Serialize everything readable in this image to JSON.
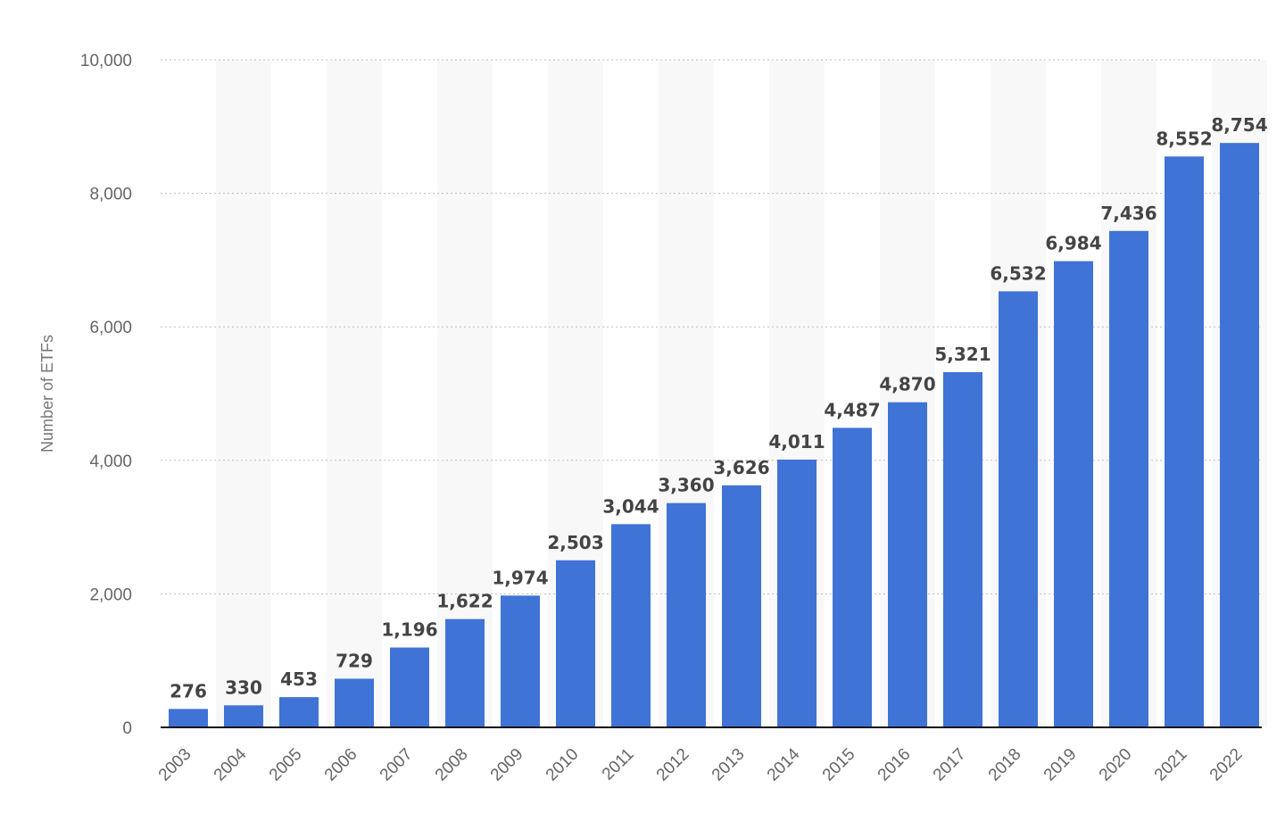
{
  "chart_data": {
    "type": "bar",
    "categories": [
      "2003",
      "2004",
      "2005",
      "2006",
      "2007",
      "2008",
      "2009",
      "2010",
      "2011",
      "2012",
      "2013",
      "2014",
      "2015",
      "2016",
      "2017",
      "2018",
      "2019",
      "2020",
      "2021",
      "2022"
    ],
    "values": [
      276,
      330,
      453,
      729,
      1196,
      1622,
      1974,
      2503,
      3044,
      3360,
      3626,
      4011,
      4487,
      4870,
      5321,
      6532,
      6984,
      7436,
      8552,
      8754
    ],
    "value_labels": [
      "276",
      "330",
      "453",
      "729",
      "1,196",
      "1,622",
      "1,974",
      "2,503",
      "3,044",
      "3,360",
      "3,626",
      "4,011",
      "4,487",
      "4,870",
      "5,321",
      "6,532",
      "6,984",
      "7,436",
      "8,552",
      "8,754"
    ],
    "ylabel": "Number of ETFs",
    "xlabel": "",
    "ylim": [
      0,
      10000
    ],
    "yticks": [
      0,
      2000,
      4000,
      6000,
      8000,
      10000
    ],
    "ytick_labels": [
      "0",
      "2,000",
      "4,000",
      "6,000",
      "8,000",
      "10,000"
    ],
    "grid": true,
    "bar_color": "#3f73d6",
    "band_color": "#f8f8f8"
  }
}
